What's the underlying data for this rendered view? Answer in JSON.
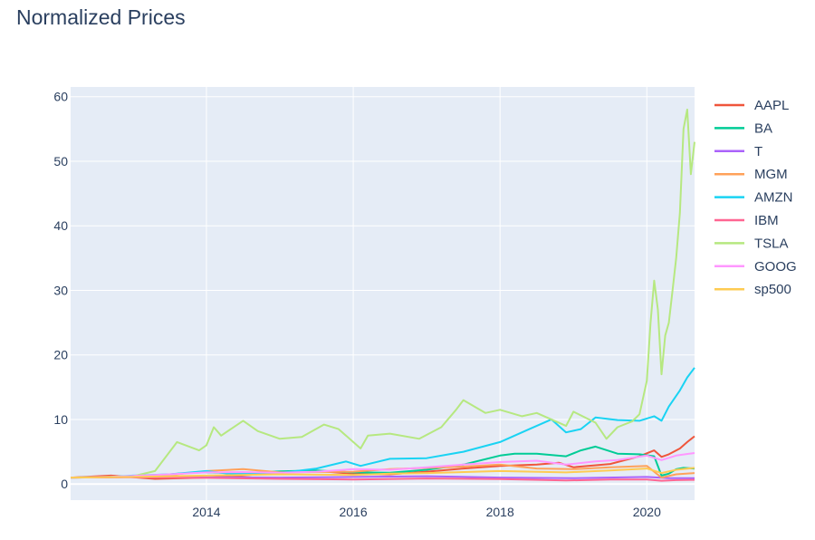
{
  "chart_data": {
    "type": "line",
    "title": "Normalized Prices",
    "xlabel": "",
    "ylabel": "",
    "xlim": [
      2012.15,
      2020.65
    ],
    "ylim": [
      -2.5,
      61.5
    ],
    "x_ticks": [
      2014,
      2016,
      2018,
      2020
    ],
    "x_tick_labels": [
      "2014",
      "2016",
      "2018",
      "2020"
    ],
    "y_ticks": [
      0,
      10,
      20,
      30,
      40,
      50,
      60
    ],
    "y_tick_labels": [
      "0",
      "10",
      "20",
      "30",
      "40",
      "50",
      "60"
    ],
    "grid": true,
    "legend_position": "right",
    "plot_bgcolor": "#E5ECF6",
    "series": [
      {
        "name": "AAPL",
        "color": "#EF553B",
        "x": [
          2012.15,
          2012.7,
          2013.3,
          2014.0,
          2014.5,
          2015.0,
          2015.5,
          2016.0,
          2016.5,
          2017.0,
          2017.5,
          2018.0,
          2018.5,
          2018.8,
          2019.0,
          2019.5,
          2019.9,
          2020.1,
          2020.2,
          2020.3,
          2020.45,
          2020.55,
          2020.65
        ],
        "y": [
          1.0,
          1.3,
          0.8,
          1.0,
          1.3,
          1.8,
          2.0,
          1.6,
          1.5,
          1.9,
          2.4,
          2.8,
          3.0,
          3.3,
          2.6,
          3.1,
          4.3,
          5.2,
          4.2,
          4.6,
          5.5,
          6.5,
          7.4
        ]
      },
      {
        "name": "BA",
        "color": "#00CC96",
        "x": [
          2012.15,
          2012.7,
          2013.3,
          2013.8,
          2014.0,
          2014.5,
          2015.0,
          2015.5,
          2016.0,
          2016.5,
          2017.0,
          2017.5,
          2018.0,
          2018.2,
          2018.5,
          2018.9,
          2019.1,
          2019.3,
          2019.6,
          2019.9,
          2020.1,
          2020.2,
          2020.3,
          2020.4,
          2020.5,
          2020.65
        ],
        "y": [
          1.0,
          1.05,
          1.3,
          1.75,
          1.8,
          1.7,
          1.95,
          2.1,
          1.8,
          1.75,
          2.2,
          3.0,
          4.4,
          4.7,
          4.7,
          4.3,
          5.2,
          5.8,
          4.7,
          4.6,
          4.3,
          1.3,
          1.6,
          2.3,
          2.5,
          2.4
        ]
      },
      {
        "name": "T",
        "color": "#AB63FA",
        "x": [
          2012.15,
          2013.0,
          2014.0,
          2015.0,
          2016.0,
          2017.0,
          2018.0,
          2019.0,
          2020.0,
          2020.3,
          2020.65
        ],
        "y": [
          1.0,
          1.1,
          1.05,
          1.0,
          1.1,
          1.2,
          1.0,
          0.9,
          1.1,
          0.9,
          0.9
        ]
      },
      {
        "name": "MGM",
        "color": "#FFA15A",
        "x": [
          2012.15,
          2013.0,
          2013.5,
          2014.0,
          2014.5,
          2015.0,
          2016.0,
          2016.5,
          2017.0,
          2017.5,
          2018.0,
          2018.5,
          2019.0,
          2019.5,
          2020.0,
          2020.2,
          2020.4,
          2020.65
        ],
        "y": [
          1.0,
          1.1,
          1.4,
          2.0,
          2.3,
          1.8,
          1.9,
          2.3,
          2.5,
          2.7,
          3.0,
          2.4,
          2.3,
          2.6,
          2.8,
          1.0,
          1.5,
          1.7
        ]
      },
      {
        "name": "AMZN",
        "color": "#19D3F3",
        "x": [
          2012.15,
          2012.7,
          2013.0,
          2013.5,
          2014.0,
          2014.3,
          2014.7,
          2015.0,
          2015.5,
          2015.9,
          2016.1,
          2016.5,
          2017.0,
          2017.5,
          2018.0,
          2018.4,
          2018.7,
          2018.9,
          2019.1,
          2019.3,
          2019.6,
          2019.9,
          2020.1,
          2020.2,
          2020.3,
          2020.45,
          2020.55,
          2020.65
        ],
        "y": [
          1.0,
          1.1,
          1.3,
          1.5,
          2.0,
          1.6,
          1.6,
          1.7,
          2.4,
          3.5,
          2.8,
          3.9,
          4.0,
          5.0,
          6.5,
          8.5,
          10.0,
          8.0,
          8.5,
          10.3,
          9.9,
          9.8,
          10.5,
          9.8,
          12.0,
          14.5,
          16.5,
          18.0
        ]
      },
      {
        "name": "IBM",
        "color": "#FF6692",
        "x": [
          2012.15,
          2013.0,
          2013.5,
          2014.0,
          2015.0,
          2016.0,
          2017.0,
          2018.0,
          2018.9,
          2019.5,
          2020.0,
          2020.2,
          2020.4,
          2020.65
        ],
        "y": [
          1.0,
          1.05,
          1.0,
          0.95,
          0.8,
          0.7,
          0.85,
          0.75,
          0.55,
          0.7,
          0.7,
          0.5,
          0.6,
          0.65
        ]
      },
      {
        "name": "TSLA",
        "color": "#B6E880",
        "x": [
          2012.15,
          2012.6,
          2013.0,
          2013.3,
          2013.6,
          2013.9,
          2014.0,
          2014.1,
          2014.2,
          2014.5,
          2014.7,
          2015.0,
          2015.3,
          2015.6,
          2015.8,
          2016.1,
          2016.2,
          2016.5,
          2016.9,
          2017.2,
          2017.4,
          2017.5,
          2017.8,
          2018.0,
          2018.3,
          2018.5,
          2018.7,
          2018.9,
          2019.0,
          2019.3,
          2019.45,
          2019.6,
          2019.8,
          2019.9,
          2020.0,
          2020.05,
          2020.1,
          2020.15,
          2020.2,
          2020.25,
          2020.3,
          2020.35,
          2020.4,
          2020.45,
          2020.5,
          2020.55,
          2020.6,
          2020.65
        ],
        "y": [
          1.0,
          1.1,
          1.2,
          2.0,
          6.5,
          5.2,
          6.0,
          8.8,
          7.5,
          9.8,
          8.2,
          7.0,
          7.3,
          9.2,
          8.5,
          5.5,
          7.5,
          7.8,
          7.0,
          8.8,
          11.5,
          13.0,
          11.0,
          11.5,
          10.5,
          11.0,
          10.0,
          9.0,
          11.2,
          9.5,
          7.0,
          8.8,
          9.7,
          10.8,
          16.0,
          25.0,
          31.5,
          27.0,
          17.0,
          23.0,
          25.0,
          30.0,
          35.0,
          42.0,
          55.0,
          58.0,
          48.0,
          53.0
        ]
      },
      {
        "name": "GOOG",
        "color": "#FF97FF",
        "x": [
          2012.15,
          2012.7,
          2013.0,
          2013.5,
          2014.0,
          2014.5,
          2015.0,
          2015.5,
          2016.0,
          2016.5,
          2017.0,
          2017.5,
          2018.0,
          2018.5,
          2018.9,
          2019.3,
          2019.6,
          2020.0,
          2020.2,
          2020.4,
          2020.65
        ],
        "y": [
          1.0,
          1.1,
          1.25,
          1.5,
          1.8,
          1.85,
          1.75,
          1.9,
          2.3,
          2.2,
          2.6,
          3.0,
          3.4,
          3.6,
          3.0,
          3.5,
          3.7,
          4.4,
          3.7,
          4.4,
          4.8
        ]
      },
      {
        "name": "sp500",
        "color": "#FECB52",
        "x": [
          2012.15,
          2013.0,
          2014.0,
          2015.0,
          2016.0,
          2016.5,
          2017.0,
          2018.0,
          2018.9,
          2019.5,
          2020.0,
          2020.2,
          2020.4,
          2020.65
        ],
        "y": [
          1.0,
          1.1,
          1.3,
          1.5,
          1.4,
          1.6,
          1.7,
          2.0,
          1.8,
          2.1,
          2.4,
          1.7,
          2.2,
          2.5
        ]
      }
    ]
  }
}
